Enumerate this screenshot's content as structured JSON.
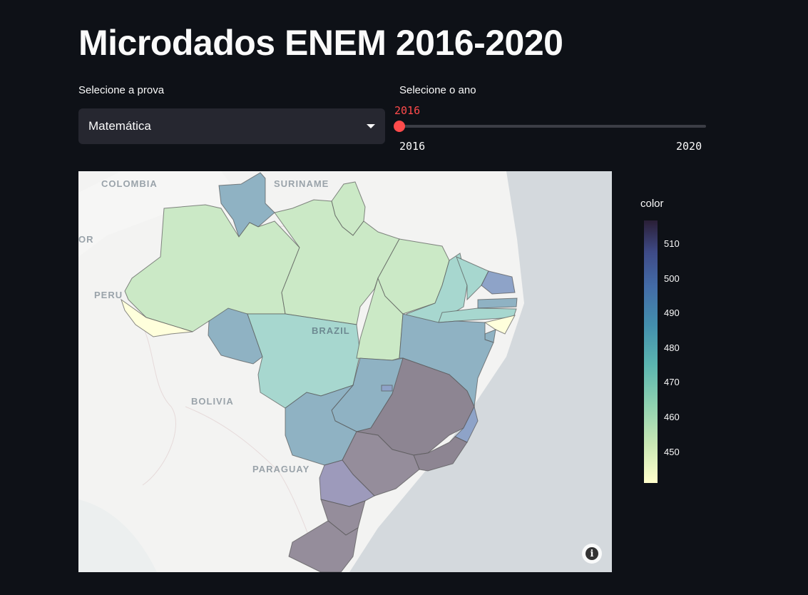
{
  "page": {
    "title": "Microdados ENEM 2016-2020"
  },
  "exam_select": {
    "label": "Selecione a prova",
    "value": "Matemática"
  },
  "year_slider": {
    "label": "Selecione o ano",
    "value": "2016",
    "min": "2016",
    "max": "2020",
    "position": 0
  },
  "map": {
    "labels": {
      "colombia": "COLOMBIA",
      "suriname": "SURINAME",
      "peru": "PERU",
      "brazil": "BRAZIL",
      "bolivia": "BOLIVIA",
      "paraguay": "PARAGUAY",
      "or": "OR"
    },
    "colors": {
      "low": "#ffffdc",
      "mint": "#cbe9c6",
      "teal_light": "#a7d7cf",
      "teal": "#8ec7c8",
      "steel": "#8fb2c3",
      "blue": "#8ea3c8",
      "lavender": "#9d9abb",
      "mauve": "#958d9b",
      "dark": "#8d8592"
    }
  },
  "colorbar": {
    "title": "color",
    "ticks": [
      "510",
      "500",
      "490",
      "480",
      "470",
      "460",
      "450"
    ]
  }
}
